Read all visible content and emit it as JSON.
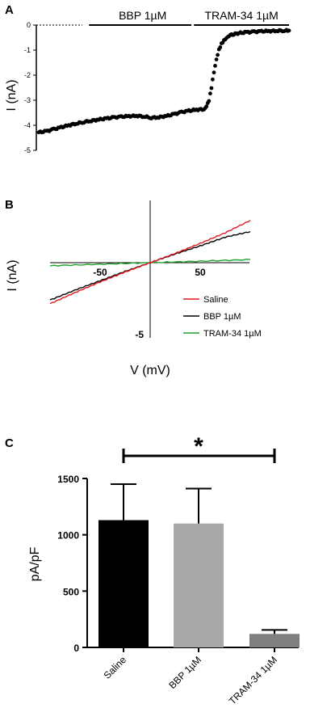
{
  "colors": {
    "ink": "#000000",
    "saline": "#e31a1c",
    "bbp": "#000000",
    "tram": "#1fa12b",
    "bar_saline": "#000000",
    "bar_bbp": "#a9a9ab",
    "bar_tram": "#7f7f7f"
  },
  "chart_data": [
    {
      "panel": "A",
      "type": "scatter",
      "title": "",
      "xlabel": "",
      "ylabel": "I (nA)",
      "ylim": [
        -5,
        0
      ],
      "y_ticks": [
        "0",
        "-1",
        "-2",
        "-3",
        "-4",
        "-5"
      ],
      "grid": false,
      "annotations": [
        {
          "text": "BBP 1µM",
          "x_start": 0.22,
          "x_end": 0.61
        },
        {
          "text": "TRAM-34 1µM",
          "x_start": 0.62,
          "x_end": 1.0
        }
      ],
      "series": [
        {
          "x": [
            0.0,
            0.03,
            0.06,
            0.09,
            0.12,
            0.15,
            0.18,
            0.21,
            0.24,
            0.27,
            0.3,
            0.33,
            0.36,
            0.39,
            0.42,
            0.45,
            0.48,
            0.51,
            0.54,
            0.57,
            0.6,
            0.63,
            0.66,
            0.67,
            0.68,
            0.69,
            0.7,
            0.71,
            0.72,
            0.73,
            0.74,
            0.75,
            0.76,
            0.78,
            0.8,
            0.83,
            0.86,
            0.89,
            0.92,
            0.95,
            0.98,
            1.0
          ],
          "y": [
            -4.28,
            -4.24,
            -4.16,
            -4.08,
            -4.0,
            -3.93,
            -3.87,
            -3.82,
            -3.77,
            -3.73,
            -3.69,
            -3.66,
            -3.64,
            -3.62,
            -3.65,
            -3.7,
            -3.68,
            -3.63,
            -3.56,
            -3.48,
            -3.42,
            -3.38,
            -3.36,
            -3.22,
            -3.0,
            -2.5,
            -1.9,
            -1.4,
            -1.0,
            -0.75,
            -0.6,
            -0.5,
            -0.42,
            -0.36,
            -0.32,
            -0.29,
            -0.27,
            -0.25,
            -0.24,
            -0.23,
            -0.22,
            -0.22
          ]
        }
      ]
    },
    {
      "panel": "B",
      "type": "line",
      "title": "",
      "xlabel": "V (mV)",
      "ylabel": "I (nA)",
      "xlim": [
        -100,
        100
      ],
      "ylim": [
        -5,
        5
      ],
      "x_ticks": [
        "-50",
        "50"
      ],
      "y_ticks": [
        "-5"
      ],
      "grid": false,
      "legend": "bottom-right",
      "series": [
        {
          "name": "Saline",
          "color": "#e31a1c",
          "x": [
            -100,
            -75,
            -50,
            -25,
            0,
            25,
            50,
            75,
            100
          ],
          "y": [
            -3.3,
            -2.4,
            -1.55,
            -0.75,
            0,
            0.75,
            1.55,
            2.4,
            3.4
          ]
        },
        {
          "name": "BBP 1µM",
          "color": "#000000",
          "x": [
            -100,
            -75,
            -50,
            -25,
            0,
            25,
            50,
            75,
            100
          ],
          "y": [
            -3.0,
            -2.2,
            -1.45,
            -0.7,
            0,
            0.7,
            1.35,
            2.05,
            2.5
          ]
        },
        {
          "name": "TRAM-34 1µM",
          "color": "#1fa12b",
          "x": [
            -100,
            -50,
            0,
            50,
            100
          ],
          "y": [
            -0.25,
            -0.12,
            0,
            0.12,
            0.25
          ]
        }
      ]
    },
    {
      "panel": "C",
      "type": "bar",
      "title": "",
      "xlabel": "",
      "ylabel": "pA/pF",
      "ylim": [
        0,
        1500
      ],
      "y_ticks": [
        0,
        500,
        1000,
        1500
      ],
      "grid": false,
      "categories": [
        "Saline",
        "BBP 1µM",
        "TRAM-34 1µM"
      ],
      "values": [
        1130,
        1100,
        120
      ],
      "errors": [
        320,
        310,
        35
      ],
      "significance": {
        "label": "*",
        "from": 0,
        "to": 2
      }
    }
  ]
}
